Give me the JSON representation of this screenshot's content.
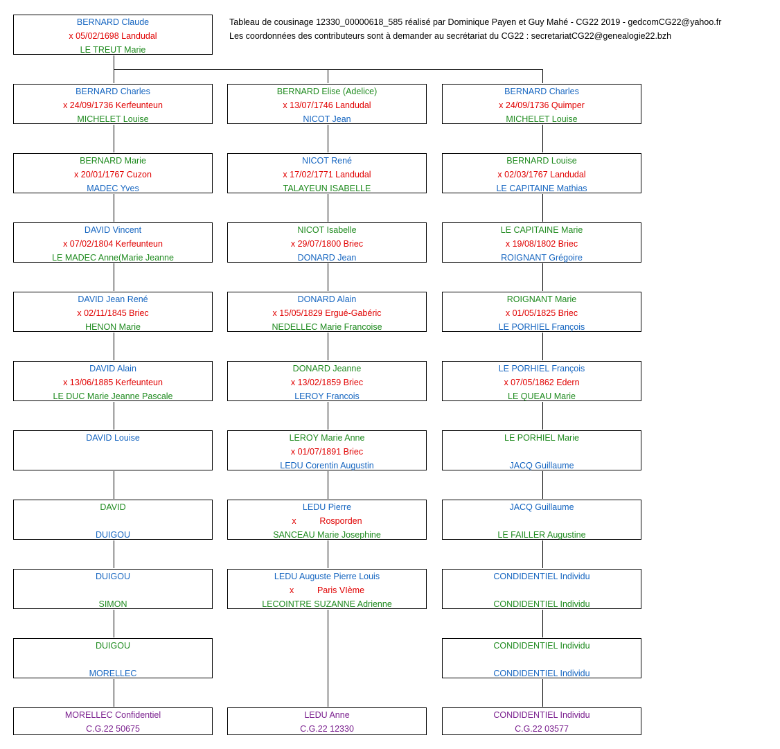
{
  "header": {
    "line1": "Tableau de cousinage 12330_00000618_585 réalisé par Dominique Payen et Guy Mahé - CG22 2019 - gedcomCG22@yahoo.fr",
    "line2": "Les coordonnées des contributeurs sont à demander au secrétariat du CG22 :  secretariatCG22@genealogie22.bzh"
  },
  "root": {
    "person": "BERNARD Claude",
    "marriage": "x 05/02/1698 Landudal",
    "spouse": "LE TREUT Marie"
  },
  "columns": [
    {
      "gen2": {
        "person": "BERNARD Charles",
        "marriage": "x 24/09/1736 Kerfeunteun",
        "spouse": "MICHELET Louise"
      },
      "gen3": {
        "person": "BERNARD Marie",
        "marriage": "x 20/01/1767 Cuzon",
        "spouse": "MADEC Yves"
      },
      "gen4": {
        "person": "DAVID Vincent",
        "marriage": "x 07/02/1804 Kerfeunteun",
        "spouse": "LE MADEC Anne(Marie Jeanne"
      },
      "gen5": {
        "person": "DAVID Jean René",
        "marriage": "x 02/11/1845 Briec",
        "spouse": "HENON Marie"
      },
      "gen6": {
        "person": "DAVID Alain",
        "marriage": "x 13/06/1885 Kerfeunteun",
        "spouse": "LE DUC Marie Jeanne Pascale"
      },
      "gen7": {
        "person": "DAVID Louise",
        "marriage": "",
        "spouse": ""
      },
      "gen8": {
        "person": "DAVID",
        "marriage": "",
        "spouse": "DUIGOU"
      },
      "gen9": {
        "person": "DUIGOU",
        "marriage": "",
        "spouse": "SIMON"
      },
      "gen10": {
        "person": "DUIGOU",
        "marriage": "",
        "spouse": "MORELLEC"
      },
      "bottom": {
        "person": "MORELLEC Confidentiel",
        "ref": "C.G.22 50675"
      }
    },
    {
      "gen2": {
        "person": "BERNARD Elise (Adelice)",
        "marriage": "x 13/07/1746 Landudal",
        "spouse": "NICOT Jean"
      },
      "gen3": {
        "person": "NICOT René",
        "marriage": "x 17/02/1771 Landudal",
        "spouse": "TALAYEUN ISABELLE"
      },
      "gen4": {
        "person": "NICOT Isabelle",
        "marriage": "x 29/07/1800 Briec",
        "spouse": "DONARD Jean"
      },
      "gen5": {
        "person": "DONARD Alain",
        "marriage": "x 15/05/1829 Ergué-Gabéric",
        "spouse": "NEDELLEC Marie Francoise"
      },
      "gen6": {
        "person": "DONARD Jeanne",
        "marriage": "x 13/02/1859 Briec",
        "spouse": "LEROY Francois"
      },
      "gen7": {
        "person": "LEROY Marie Anne",
        "marriage": "x 01/07/1891 Briec",
        "spouse": "LEDU Corentin Augustin"
      },
      "gen8": {
        "person": "LEDU Pierre",
        "marriage_x": "x",
        "marriage_place": "Rosporden",
        "spouse": "SANCEAU Marie Josephine"
      },
      "gen9": {
        "person": "LEDU Auguste Pierre Louis",
        "marriage_x": "x",
        "marriage_place": "Paris VIème",
        "spouse": "LECOINTRE SUZANNE Adrienne"
      },
      "bottom": {
        "person": "LEDU Anne",
        "ref": "C.G.22 12330"
      }
    },
    {
      "gen2": {
        "person": "BERNARD Charles",
        "marriage": "x 24/09/1736 Quimper",
        "spouse": "MICHELET Louise"
      },
      "gen3": {
        "person": "BERNARD Louise",
        "marriage": "x 02/03/1767 Landudal",
        "spouse": "LE CAPITAINE Mathias"
      },
      "gen4": {
        "person": "LE CAPITAINE Marie",
        "marriage": "x 19/08/1802 Briec",
        "spouse": "ROIGNANT Grégoire"
      },
      "gen5": {
        "person": "ROIGNANT Marie",
        "marriage": "x 01/05/1825 Briec",
        "spouse": "LE PORHIEL François"
      },
      "gen6": {
        "person": "LE PORHIEL François",
        "marriage": "x 07/05/1862 Edern",
        "spouse": "LE QUEAU Marie"
      },
      "gen7": {
        "person": "LE PORHIEL Marie",
        "marriage": "",
        "spouse": "JACQ Guillaume"
      },
      "gen8": {
        "person": "JACQ Guillaume",
        "marriage": "",
        "spouse": "LE FAILLER Augustine"
      },
      "gen9": {
        "person": "CONDIDENTIEL Individu",
        "marriage": "",
        "spouse": "CONDIDENTIEL Individu"
      },
      "gen10": {
        "person": "CONDIDENTIEL Individu",
        "marriage": "",
        "spouse": "CONDIDENTIEL Individu"
      },
      "bottom": {
        "person": "CONDIDENTIEL Individu",
        "ref": "C.G.22 03577"
      }
    }
  ],
  "colors": {
    "blue": "#1565c0",
    "green": "#1e8a1e",
    "red": "#e00000",
    "purple": "#7a1f8e"
  }
}
